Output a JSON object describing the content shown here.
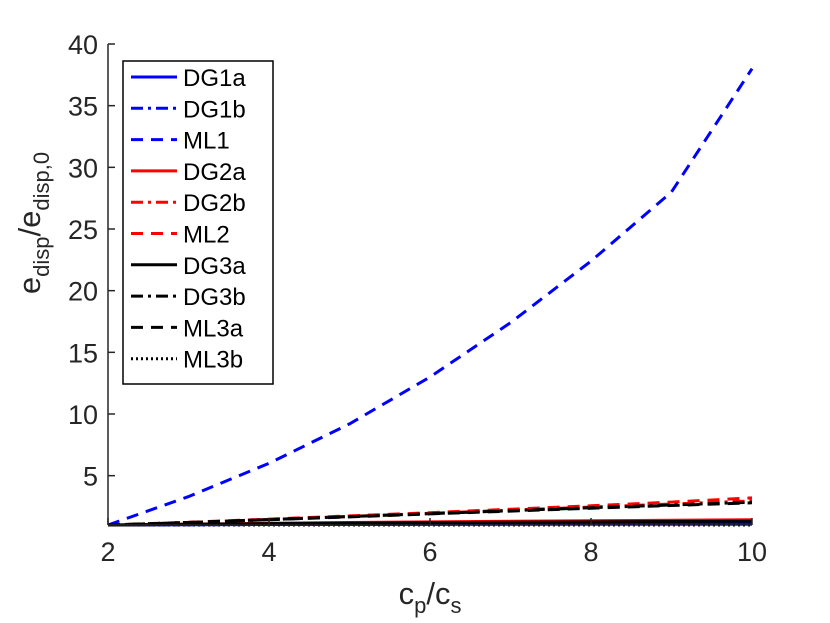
{
  "chart_data": {
    "type": "line",
    "title": "",
    "xlabel": {
      "base1": "c",
      "sub1": "p",
      "sep": "/",
      "base2": "c",
      "sub2": "s"
    },
    "ylabel": {
      "base1": "e",
      "sub1": "disp",
      "sep": "/",
      "base2": "e",
      "sub2": "disp,0"
    },
    "xlim": [
      2,
      10
    ],
    "ylim": [
      1,
      40
    ],
    "xticks": [
      "2",
      "4",
      "6",
      "8",
      "10"
    ],
    "yticks": [
      "5",
      "10",
      "15",
      "20",
      "25",
      "30",
      "35",
      "40"
    ],
    "grid": false,
    "legend_position": "top-left",
    "x": [
      2,
      3,
      4,
      5,
      6,
      7,
      8,
      9,
      10
    ],
    "series": [
      {
        "name": "DG1a",
        "color": "#0000ff",
        "dash": "solid",
        "values": [
          1.0,
          1.02,
          1.04,
          1.05,
          1.06,
          1.07,
          1.08,
          1.09,
          1.1
        ]
      },
      {
        "name": "DG1b",
        "color": "#0000ff",
        "dash": "dashdot",
        "values": [
          1.0,
          1.02,
          1.04,
          1.05,
          1.06,
          1.07,
          1.08,
          1.09,
          1.1
        ]
      },
      {
        "name": "ML1",
        "color": "#0000ff",
        "dash": "dashed",
        "values": [
          1.0,
          3.3,
          6.0,
          9.2,
          13.0,
          17.4,
          22.4,
          28.0,
          38.0
        ]
      },
      {
        "name": "DG2a",
        "color": "#ff0000",
        "dash": "solid",
        "values": [
          1.0,
          1.07,
          1.14,
          1.2,
          1.25,
          1.3,
          1.34,
          1.38,
          1.42
        ]
      },
      {
        "name": "DG2b",
        "color": "#ff0000",
        "dash": "dashdot",
        "values": [
          1.0,
          1.2,
          1.45,
          1.7,
          1.95,
          2.2,
          2.45,
          2.7,
          2.95
        ]
      },
      {
        "name": "ML2",
        "color": "#ff0000",
        "dash": "dashed",
        "values": [
          1.0,
          1.22,
          1.48,
          1.74,
          2.0,
          2.28,
          2.56,
          2.86,
          3.2
        ]
      },
      {
        "name": "DG3a",
        "color": "#000000",
        "dash": "solid",
        "values": [
          1.0,
          1.06,
          1.11,
          1.15,
          1.19,
          1.22,
          1.25,
          1.28,
          1.3
        ]
      },
      {
        "name": "DG3b",
        "color": "#000000",
        "dash": "dashdot",
        "values": [
          1.0,
          1.2,
          1.44,
          1.68,
          1.92,
          2.16,
          2.4,
          2.62,
          2.85
        ]
      },
      {
        "name": "ML3a",
        "color": "#000000",
        "dash": "dashed",
        "values": [
          1.0,
          1.2,
          1.43,
          1.66,
          1.9,
          2.13,
          2.36,
          2.58,
          2.8
        ]
      },
      {
        "name": "ML3b",
        "color": "#000000",
        "dash": "dotted",
        "values": [
          1.0,
          1.0,
          1.0,
          1.0,
          1.0,
          1.0,
          1.0,
          1.0,
          1.0
        ]
      }
    ]
  }
}
